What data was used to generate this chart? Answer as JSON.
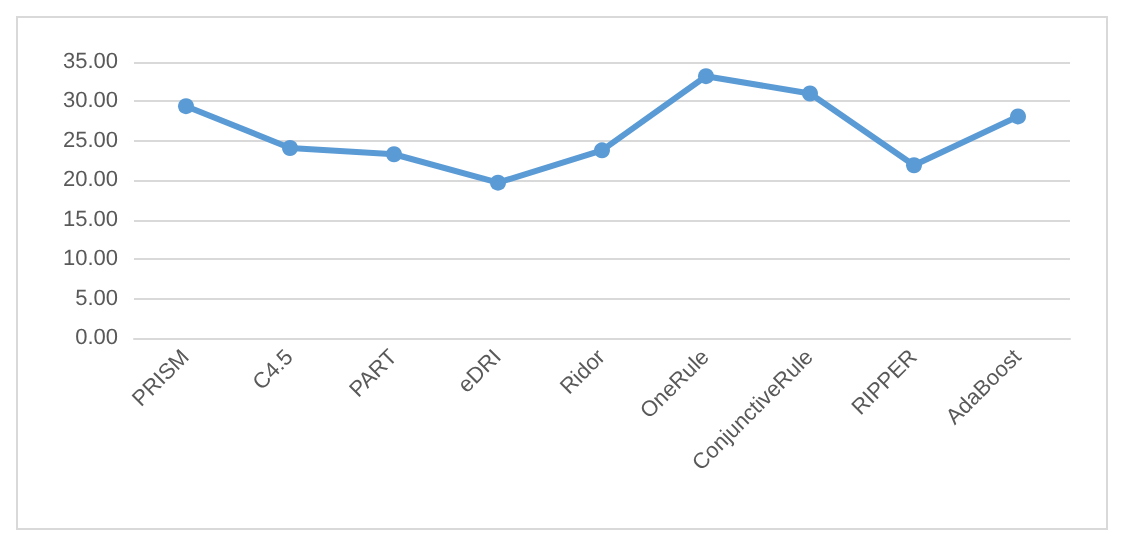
{
  "chart_data": {
    "type": "line",
    "categories": [
      "PRISM",
      "C4.5",
      "PART",
      "eDRI",
      "Ridor",
      "OneRule",
      "ConjunctiveRule",
      "RIPPER",
      "AdaBoost"
    ],
    "series": [
      {
        "color": "#5b9bd5",
        "values": [
          29.4,
          24.1,
          23.3,
          19.7,
          23.8,
          33.2,
          31.0,
          21.9,
          28.1
        ]
      }
    ],
    "ylim": [
      0,
      35
    ],
    "yticks": [
      {
        "value": 0,
        "label": "0.00"
      },
      {
        "value": 5,
        "label": "5.00"
      },
      {
        "value": 10,
        "label": "10.00"
      },
      {
        "value": 15,
        "label": "15.00"
      },
      {
        "value": 20,
        "label": "20.00"
      },
      {
        "value": 25,
        "label": "25.00"
      },
      {
        "value": 30,
        "label": "30.00"
      },
      {
        "value": 35,
        "label": "35.00"
      }
    ],
    "grid": "y",
    "marker": "circle",
    "line_style": "solid"
  }
}
